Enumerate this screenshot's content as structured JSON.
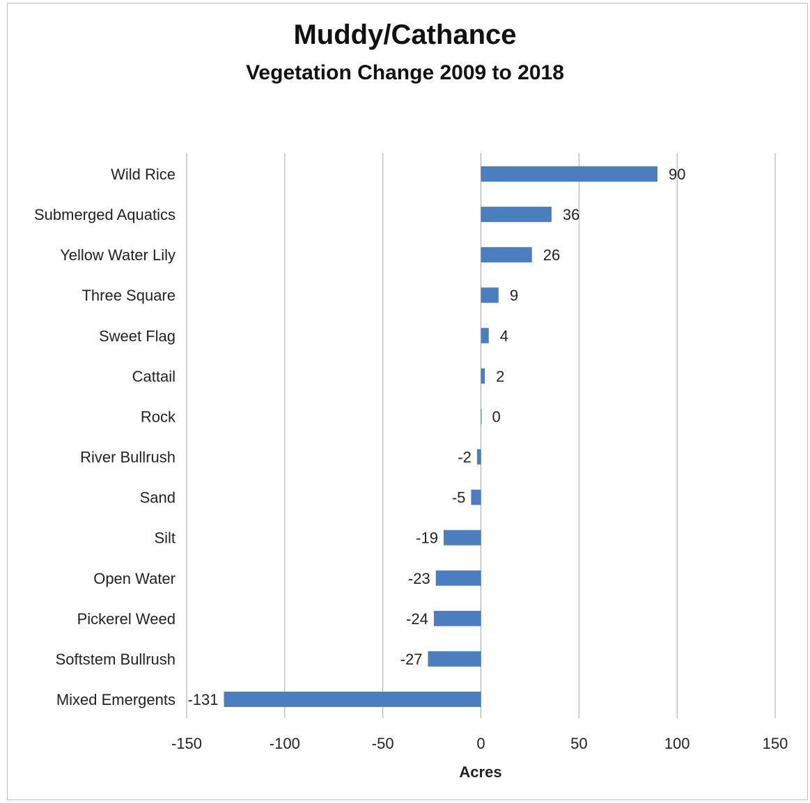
{
  "chart_data": {
    "type": "bar",
    "orientation": "horizontal",
    "title": "Muddy/Cathance",
    "subtitle": "Vegetation Change 2009 to 2018",
    "xlabel": "Acres",
    "ylabel": "",
    "xlim": [
      -150,
      150
    ],
    "xticks": [
      -150,
      -100,
      -50,
      0,
      50,
      100,
      150
    ],
    "grid": "vertical",
    "bar_color": "#4a7ebf",
    "categories": [
      "Wild Rice",
      "Submerged Aquatics",
      "Yellow Water Lily",
      "Three Square",
      "Sweet Flag",
      "Cattail",
      "Rock",
      "River Bullrush",
      "Sand",
      "Silt",
      "Open Water",
      "Pickerel Weed",
      "Softstem Bullrush",
      "Mixed Emergents"
    ],
    "values": [
      90,
      36,
      26,
      9,
      4,
      2,
      0,
      -2,
      -5,
      -19,
      -23,
      -24,
      -27,
      -131
    ]
  }
}
